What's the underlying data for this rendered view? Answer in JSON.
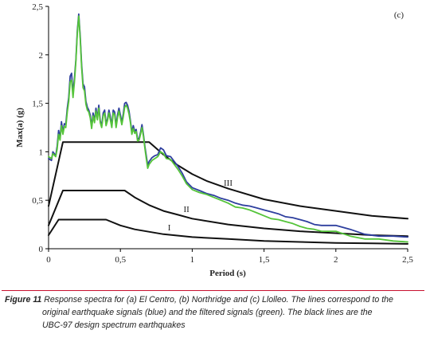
{
  "chart_data": {
    "type": "line",
    "panel_label": "(c)",
    "xlabel": "Period (s)",
    "ylabel": "Max(a) (g)",
    "xlim": [
      0,
      2.5
    ],
    "ylim": [
      0,
      2.5
    ],
    "x_ticks": [
      "0",
      "0,5",
      "1",
      "1,5",
      "2",
      "2,5"
    ],
    "y_ticks": [
      "0",
      "0,5",
      "1",
      "1,5",
      "2",
      "2,5"
    ],
    "grid": false,
    "series": [
      {
        "color": "#2e3f9e",
        "points": [
          [
            0.0,
            0.93
          ],
          [
            0.02,
            0.91
          ],
          [
            0.03,
            1.0
          ],
          [
            0.05,
            0.96
          ],
          [
            0.06,
            1.06
          ],
          [
            0.07,
            1.22
          ],
          [
            0.08,
            1.14
          ],
          [
            0.09,
            1.31
          ],
          [
            0.1,
            1.2
          ],
          [
            0.11,
            1.29
          ],
          [
            0.12,
            1.28
          ],
          [
            0.13,
            1.45
          ],
          [
            0.14,
            1.56
          ],
          [
            0.15,
            1.78
          ],
          [
            0.16,
            1.81
          ],
          [
            0.17,
            1.6
          ],
          [
            0.18,
            1.76
          ],
          [
            0.19,
            1.95
          ],
          [
            0.2,
            2.25
          ],
          [
            0.21,
            2.42
          ],
          [
            0.22,
            2.2
          ],
          [
            0.23,
            1.9
          ],
          [
            0.24,
            1.7
          ],
          [
            0.25,
            1.67
          ],
          [
            0.26,
            1.52
          ],
          [
            0.27,
            1.46
          ],
          [
            0.28,
            1.43
          ],
          [
            0.29,
            1.38
          ],
          [
            0.3,
            1.26
          ],
          [
            0.31,
            1.4
          ],
          [
            0.32,
            1.32
          ],
          [
            0.33,
            1.45
          ],
          [
            0.34,
            1.35
          ],
          [
            0.35,
            1.48
          ],
          [
            0.36,
            1.32
          ],
          [
            0.37,
            1.27
          ],
          [
            0.38,
            1.4
          ],
          [
            0.39,
            1.43
          ],
          [
            0.4,
            1.29
          ],
          [
            0.41,
            1.34
          ],
          [
            0.42,
            1.43
          ],
          [
            0.43,
            1.36
          ],
          [
            0.44,
            1.27
          ],
          [
            0.45,
            1.43
          ],
          [
            0.46,
            1.41
          ],
          [
            0.47,
            1.27
          ],
          [
            0.48,
            1.38
          ],
          [
            0.49,
            1.45
          ],
          [
            0.5,
            1.38
          ],
          [
            0.51,
            1.3
          ],
          [
            0.52,
            1.39
          ],
          [
            0.53,
            1.5
          ],
          [
            0.54,
            1.51
          ],
          [
            0.55,
            1.48
          ],
          [
            0.56,
            1.42
          ],
          [
            0.57,
            1.32
          ],
          [
            0.58,
            1.2
          ],
          [
            0.59,
            1.27
          ],
          [
            0.6,
            1.21
          ],
          [
            0.61,
            1.23
          ],
          [
            0.62,
            1.13
          ],
          [
            0.63,
            1.14
          ],
          [
            0.64,
            1.2
          ],
          [
            0.65,
            1.28
          ],
          [
            0.66,
            1.18
          ],
          [
            0.67,
            1.06
          ],
          [
            0.68,
            0.96
          ],
          [
            0.69,
            0.86
          ],
          [
            0.7,
            0.9
          ],
          [
            0.72,
            0.94
          ],
          [
            0.74,
            0.96
          ],
          [
            0.76,
            0.97
          ],
          [
            0.78,
            1.04
          ],
          [
            0.8,
            1.02
          ],
          [
            0.82,
            0.96
          ],
          [
            0.85,
            0.95
          ],
          [
            0.87,
            0.91
          ],
          [
            0.9,
            0.85
          ],
          [
            0.93,
            0.78
          ],
          [
            0.96,
            0.69
          ],
          [
            1.0,
            0.63
          ],
          [
            1.05,
            0.6
          ],
          [
            1.1,
            0.57
          ],
          [
            1.15,
            0.55
          ],
          [
            1.2,
            0.52
          ],
          [
            1.25,
            0.5
          ],
          [
            1.3,
            0.47
          ],
          [
            1.35,
            0.45
          ],
          [
            1.4,
            0.44
          ],
          [
            1.45,
            0.42
          ],
          [
            1.5,
            0.4
          ],
          [
            1.55,
            0.38
          ],
          [
            1.6,
            0.36
          ],
          [
            1.65,
            0.33
          ],
          [
            1.7,
            0.32
          ],
          [
            1.75,
            0.3
          ],
          [
            1.8,
            0.28
          ],
          [
            1.85,
            0.25
          ],
          [
            1.9,
            0.24
          ],
          [
            2.0,
            0.24
          ],
          [
            2.1,
            0.2
          ],
          [
            2.2,
            0.15
          ],
          [
            2.3,
            0.13
          ],
          [
            2.4,
            0.13
          ],
          [
            2.5,
            0.12
          ]
        ]
      },
      {
        "color": "#55c43a",
        "points": [
          [
            0.0,
            0.95
          ],
          [
            0.02,
            0.93
          ],
          [
            0.03,
            0.98
          ],
          [
            0.05,
            0.95
          ],
          [
            0.06,
            1.03
          ],
          [
            0.07,
            1.18
          ],
          [
            0.08,
            1.12
          ],
          [
            0.09,
            1.27
          ],
          [
            0.1,
            1.18
          ],
          [
            0.11,
            1.26
          ],
          [
            0.12,
            1.25
          ],
          [
            0.13,
            1.41
          ],
          [
            0.14,
            1.52
          ],
          [
            0.15,
            1.72
          ],
          [
            0.16,
            1.74
          ],
          [
            0.17,
            1.56
          ],
          [
            0.18,
            1.72
          ],
          [
            0.19,
            1.93
          ],
          [
            0.2,
            2.22
          ],
          [
            0.21,
            2.4
          ],
          [
            0.22,
            2.17
          ],
          [
            0.23,
            1.87
          ],
          [
            0.24,
            1.66
          ],
          [
            0.25,
            1.63
          ],
          [
            0.26,
            1.49
          ],
          [
            0.27,
            1.43
          ],
          [
            0.28,
            1.41
          ],
          [
            0.29,
            1.35
          ],
          [
            0.3,
            1.24
          ],
          [
            0.31,
            1.37
          ],
          [
            0.32,
            1.3
          ],
          [
            0.33,
            1.42
          ],
          [
            0.34,
            1.33
          ],
          [
            0.35,
            1.45
          ],
          [
            0.36,
            1.3
          ],
          [
            0.37,
            1.25
          ],
          [
            0.38,
            1.37
          ],
          [
            0.39,
            1.4
          ],
          [
            0.4,
            1.27
          ],
          [
            0.41,
            1.32
          ],
          [
            0.42,
            1.4
          ],
          [
            0.43,
            1.33
          ],
          [
            0.44,
            1.25
          ],
          [
            0.45,
            1.4
          ],
          [
            0.46,
            1.38
          ],
          [
            0.47,
            1.25
          ],
          [
            0.48,
            1.35
          ],
          [
            0.49,
            1.42
          ],
          [
            0.5,
            1.35
          ],
          [
            0.51,
            1.28
          ],
          [
            0.52,
            1.36
          ],
          [
            0.53,
            1.46
          ],
          [
            0.54,
            1.48
          ],
          [
            0.55,
            1.45
          ],
          [
            0.56,
            1.39
          ],
          [
            0.57,
            1.3
          ],
          [
            0.58,
            1.18
          ],
          [
            0.59,
            1.24
          ],
          [
            0.6,
            1.19
          ],
          [
            0.61,
            1.21
          ],
          [
            0.62,
            1.11
          ],
          [
            0.63,
            1.12
          ],
          [
            0.64,
            1.18
          ],
          [
            0.65,
            1.25
          ],
          [
            0.66,
            1.16
          ],
          [
            0.67,
            1.04
          ],
          [
            0.68,
            0.93
          ],
          [
            0.69,
            0.83
          ],
          [
            0.7,
            0.87
          ],
          [
            0.72,
            0.91
          ],
          [
            0.74,
            0.93
          ],
          [
            0.76,
            0.95
          ],
          [
            0.78,
            1.0
          ],
          [
            0.8,
            0.98
          ],
          [
            0.82,
            0.93
          ],
          [
            0.85,
            0.92
          ],
          [
            0.87,
            0.88
          ],
          [
            0.9,
            0.82
          ],
          [
            0.93,
            0.75
          ],
          [
            0.96,
            0.67
          ],
          [
            1.0,
            0.61
          ],
          [
            1.05,
            0.58
          ],
          [
            1.1,
            0.56
          ],
          [
            1.15,
            0.53
          ],
          [
            1.2,
            0.5
          ],
          [
            1.25,
            0.47
          ],
          [
            1.3,
            0.43
          ],
          [
            1.35,
            0.42
          ],
          [
            1.4,
            0.4
          ],
          [
            1.45,
            0.37
          ],
          [
            1.5,
            0.34
          ],
          [
            1.55,
            0.31
          ],
          [
            1.6,
            0.3
          ],
          [
            1.65,
            0.28
          ],
          [
            1.7,
            0.26
          ],
          [
            1.75,
            0.23
          ],
          [
            1.8,
            0.21
          ],
          [
            1.85,
            0.2
          ],
          [
            1.9,
            0.18
          ],
          [
            2.0,
            0.18
          ],
          [
            2.1,
            0.13
          ],
          [
            2.2,
            0.1
          ],
          [
            2.3,
            0.1
          ],
          [
            2.4,
            0.08
          ],
          [
            2.5,
            0.07
          ]
        ]
      },
      {
        "name": "III",
        "color": "#111111",
        "points": [
          [
            0.0,
            0.44
          ],
          [
            0.1,
            1.1
          ],
          [
            0.15,
            1.1
          ],
          [
            0.3,
            1.1
          ],
          [
            0.45,
            1.1
          ],
          [
            0.6,
            1.1
          ],
          [
            0.7,
            1.1
          ],
          [
            0.8,
            0.97
          ],
          [
            0.9,
            0.86
          ],
          [
            1.0,
            0.77
          ],
          [
            1.1,
            0.7
          ],
          [
            1.25,
            0.62
          ],
          [
            1.5,
            0.51
          ],
          [
            1.75,
            0.44
          ],
          [
            2.0,
            0.39
          ],
          [
            2.25,
            0.34
          ],
          [
            2.5,
            0.31
          ]
        ]
      },
      {
        "name": "II",
        "color": "#111111",
        "points": [
          [
            0.0,
            0.24
          ],
          [
            0.1,
            0.6
          ],
          [
            0.2,
            0.6
          ],
          [
            0.3,
            0.6
          ],
          [
            0.4,
            0.6
          ],
          [
            0.53,
            0.6
          ],
          [
            0.6,
            0.53
          ],
          [
            0.7,
            0.45
          ],
          [
            0.8,
            0.39
          ],
          [
            0.9,
            0.35
          ],
          [
            1.0,
            0.31
          ],
          [
            1.25,
            0.25
          ],
          [
            1.5,
            0.21
          ],
          [
            1.75,
            0.18
          ],
          [
            2.0,
            0.16
          ],
          [
            2.25,
            0.14
          ],
          [
            2.5,
            0.13
          ]
        ]
      },
      {
        "name": "I",
        "color": "#111111",
        "points": [
          [
            0.0,
            0.14
          ],
          [
            0.07,
            0.3
          ],
          [
            0.2,
            0.3
          ],
          [
            0.3,
            0.3
          ],
          [
            0.4,
            0.3
          ],
          [
            0.5,
            0.24
          ],
          [
            0.6,
            0.2
          ],
          [
            0.8,
            0.15
          ],
          [
            1.0,
            0.12
          ],
          [
            1.25,
            0.1
          ],
          [
            1.5,
            0.08
          ],
          [
            1.75,
            0.07
          ],
          [
            2.0,
            0.06
          ],
          [
            2.25,
            0.055
          ],
          [
            2.5,
            0.05
          ]
        ]
      }
    ],
    "curve_labels": [
      {
        "text": "III",
        "x": 1.25,
        "y": 0.65
      },
      {
        "text": "II",
        "x": 0.96,
        "y": 0.38
      },
      {
        "text": "I",
        "x": 0.84,
        "y": 0.19
      }
    ]
  },
  "caption": {
    "label": "Figure 11",
    "line1": " Response spectra for (a) El Centro, (b) Northridge and (c) Llolleo. The lines correspond to the",
    "line2": "original earthquake signals (blue) and the filtered signals (green). The black lines are the",
    "line3": "UBC-97 design spectrum earthquakes"
  }
}
